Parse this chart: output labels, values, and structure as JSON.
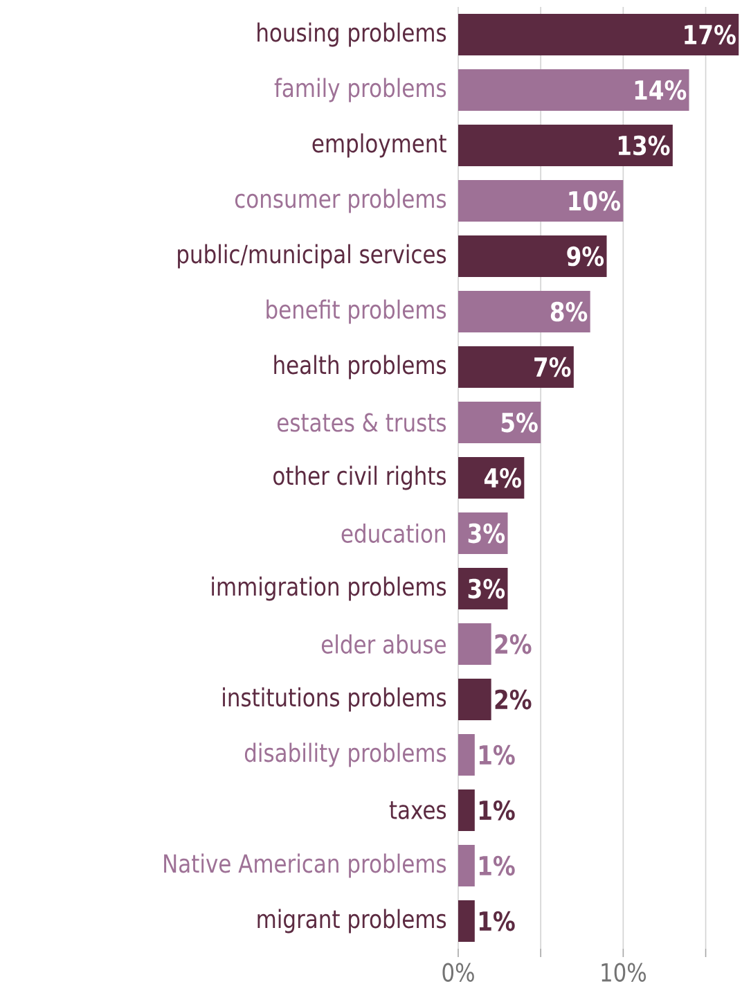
{
  "chart_data": {
    "type": "bar",
    "orientation": "horizontal",
    "categories": [
      "housing problems",
      "family problems",
      "employment",
      "consumer problems",
      "public/municipal services",
      "benefit problems",
      "health problems",
      "estates & trusts",
      "other civil rights",
      "education",
      "immigration problems",
      "elder abuse",
      "institutions problems",
      "disability problems",
      "taxes",
      "Native American problems",
      "migrant problems"
    ],
    "values": [
      17,
      14,
      13,
      10,
      9,
      8,
      7,
      5,
      4,
      3,
      3,
      2,
      2,
      1,
      1,
      1,
      1
    ],
    "value_labels": [
      "17%",
      "14%",
      "13%",
      "10%",
      "9%",
      "8%",
      "7%",
      "5%",
      "4%",
      "3%",
      "3%",
      "2%",
      "2%",
      "1%",
      "1%",
      "1%",
      "1%"
    ],
    "colors": [
      "#5c2a41",
      "#9e7196",
      "#5c2a41",
      "#9e7196",
      "#5c2a41",
      "#9e7196",
      "#5c2a41",
      "#9e7196",
      "#5c2a41",
      "#9e7196",
      "#5c2a41",
      "#9e7196",
      "#5c2a41",
      "#9e7196",
      "#5c2a41",
      "#9e7196",
      "#5c2a41"
    ],
    "xlim": [
      0,
      17.2
    ],
    "xticks": [
      {
        "value": 0,
        "label": "0%"
      },
      {
        "value": 5,
        "label": null
      },
      {
        "value": 10,
        "label": "10%"
      },
      {
        "value": 15,
        "label": null
      }
    ],
    "grid": "x"
  }
}
